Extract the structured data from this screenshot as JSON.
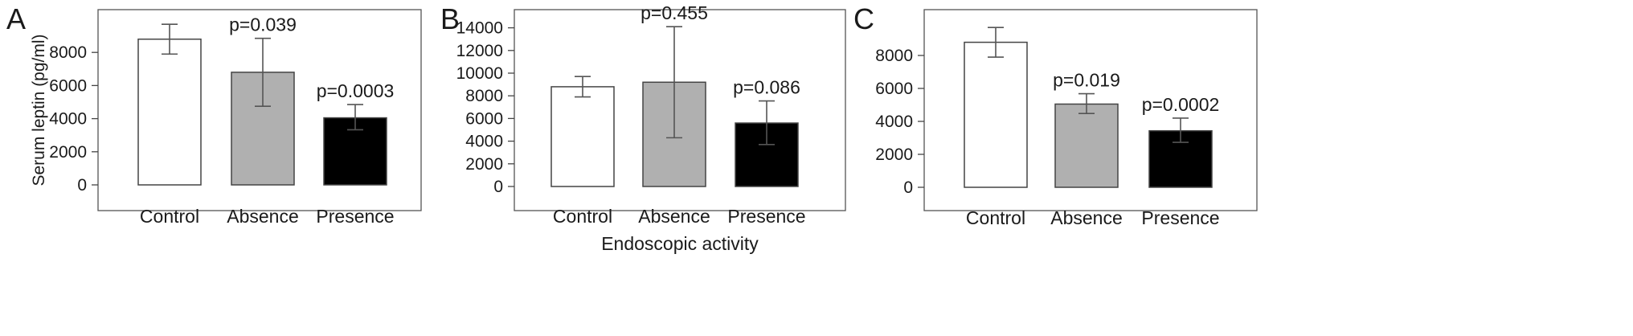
{
  "chart_data": [
    {
      "type": "bar",
      "panel_label": "A",
      "ylabel": "Serum leptin (pg/ml)",
      "xlabel": "",
      "categories": [
        "Control",
        "Absence",
        "Presence"
      ],
      "values": [
        8800,
        6800,
        4050
      ],
      "error_low": [
        7900,
        4750,
        3330
      ],
      "error_high": [
        9700,
        8850,
        4850
      ],
      "bar_colors": [
        "#ffffff",
        "#b0b0b0",
        "#000000"
      ],
      "annotations": [
        "",
        "p=0.039",
        "p=0.0003"
      ],
      "yticks": [
        0,
        2000,
        4000,
        6000,
        8000
      ],
      "ylim": [
        -1000,
        10300
      ]
    },
    {
      "type": "bar",
      "panel_label": "B",
      "ylabel": "",
      "xlabel": "Endoscopic activity",
      "categories": [
        "Control",
        "Absence",
        "Presence"
      ],
      "values": [
        8800,
        9200,
        5600
      ],
      "error_low": [
        7900,
        4300,
        3700
      ],
      "error_high": [
        9700,
        14100,
        7550
      ],
      "bar_colors": [
        "#ffffff",
        "#b0b0b0",
        "#000000"
      ],
      "annotations": [
        "",
        "p=0.455",
        "p=0.086"
      ],
      "yticks": [
        0,
        2000,
        4000,
        6000,
        8000,
        10000,
        12000,
        14000
      ],
      "ylim": [
        -1400,
        15600
      ]
    },
    {
      "type": "bar",
      "panel_label": "C",
      "ylabel": "",
      "xlabel": "",
      "categories": [
        "Control",
        "Absence",
        "Presence"
      ],
      "values": [
        8800,
        5050,
        3430
      ],
      "error_low": [
        7900,
        4480,
        2730
      ],
      "error_high": [
        9700,
        5680,
        4200
      ],
      "bar_colors": [
        "#ffffff",
        "#b0b0b0",
        "#000000"
      ],
      "annotations": [
        "",
        "p=0.019",
        "p=0.0002"
      ],
      "yticks": [
        0,
        2000,
        4000,
        6000,
        8000
      ],
      "ylim": [
        -1000,
        10900
      ]
    }
  ]
}
